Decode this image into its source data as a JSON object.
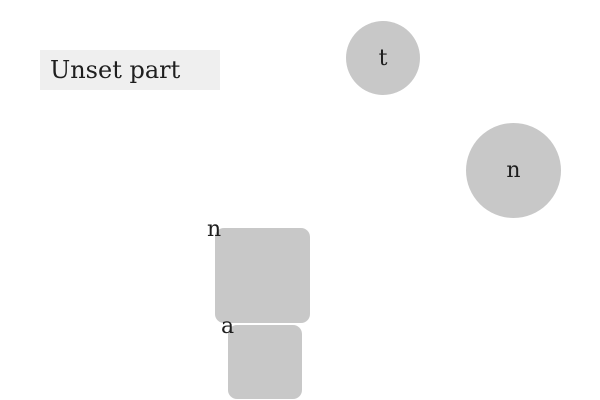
{
  "title_box": {
    "label": "Unset part"
  },
  "circle_tokens": [
    {
      "letter": "t"
    },
    {
      "letter": "n"
    }
  ],
  "square_tokens": [
    {
      "letter": "n"
    },
    {
      "letter": "a"
    }
  ],
  "colors": {
    "background": "#ffffff",
    "title_box_fill": "#efefef",
    "token_fill": "#c8c8c8",
    "text": "#1e1e1e"
  }
}
